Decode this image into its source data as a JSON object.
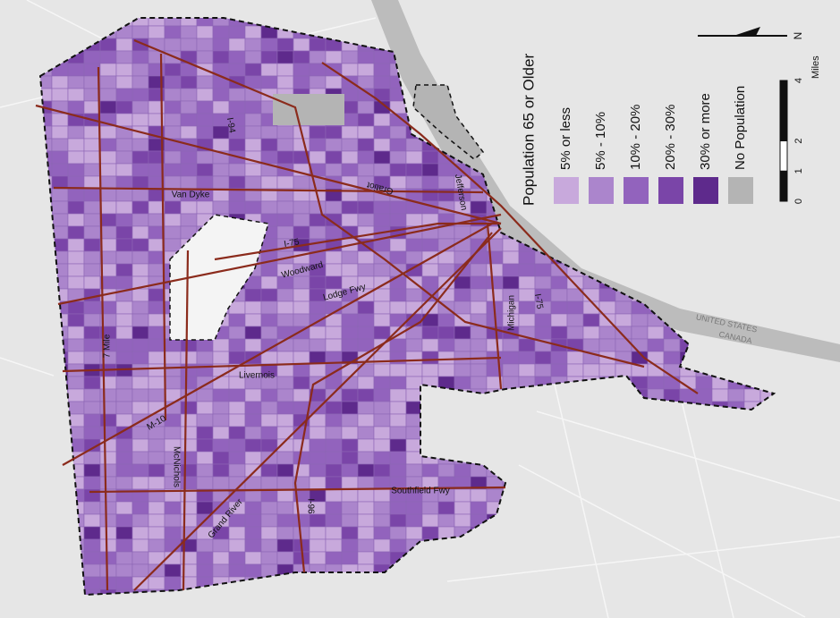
{
  "map": {
    "legend": {
      "title": "Population 65 or Older",
      "items": [
        {
          "label": "5% or less",
          "color": "#c8a9dc"
        },
        {
          "label": "5% - 10%",
          "color": "#ab85cc"
        },
        {
          "label": "10% - 20%",
          "color": "#9263bd"
        },
        {
          "label": "20% - 30%",
          "color": "#7a45a8"
        },
        {
          "label": "30% or more",
          "color": "#5e2a8c"
        },
        {
          "label": "No Population",
          "color": "#b4b4b4"
        }
      ]
    },
    "scale_bar": {
      "ticks": [
        0,
        1,
        2,
        4
      ],
      "unit": "Miles"
    },
    "north_arrow": "N",
    "road_labels": [
      "Van Dyke",
      "Gratiot",
      "I-94",
      "Jefferson",
      "I-75",
      "Woodward",
      "Lodge Fwy",
      "Michigan",
      "I-75",
      "7 Mile",
      "Livernois",
      "M-10",
      "McNichols",
      "Grand River",
      "I-96",
      "Southfield Fwy"
    ],
    "country_labels": [
      "UNITED STATES",
      "CANADA"
    ]
  }
}
